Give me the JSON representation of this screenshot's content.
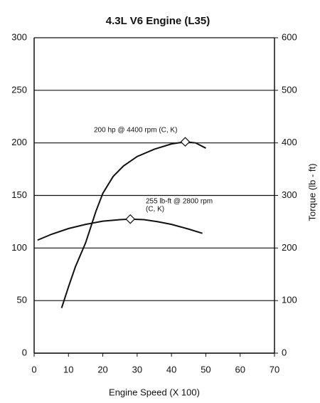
{
  "chart_data": {
    "type": "line",
    "title": "4.3L V6 Engine (L35)",
    "xlabel": "Engine Speed (X 100)",
    "y2label": "Torque (lb - ft)",
    "xlim": [
      0,
      70
    ],
    "xticks": [
      0,
      10,
      20,
      30,
      40,
      50,
      60,
      70
    ],
    "ylim": [
      0,
      300
    ],
    "yticks": [
      0,
      50,
      100,
      150,
      200,
      250,
      300
    ],
    "y2lim": [
      0,
      600
    ],
    "y2ticks": [
      0,
      100,
      200,
      300,
      400,
      500,
      600
    ],
    "grid": true,
    "series": [
      {
        "color": "#111111",
        "x": [
          8,
          10,
          12,
          15,
          18,
          20,
          23,
          26,
          30,
          35,
          40,
          44,
          47,
          50
        ],
        "values": [
          43,
          63,
          82,
          105,
          135,
          152,
          168,
          178,
          187,
          194,
          199,
          201,
          200,
          195
        ]
      },
      {
        "color": "#111111",
        "axis": "y2",
        "x": [
          1,
          5,
          10,
          15,
          20,
          25,
          28,
          32,
          36,
          40,
          45,
          49
        ],
        "values": [
          215,
          226,
          237,
          245,
          251,
          254,
          255,
          254,
          250,
          245,
          236,
          228
        ]
      }
    ],
    "annotations": [
      [
        "200 hp @ 4400 rpm (C, K)"
      ],
      [
        "255 lb-ft @ 2800 rpm",
        "(C, K)"
      ]
    ]
  }
}
